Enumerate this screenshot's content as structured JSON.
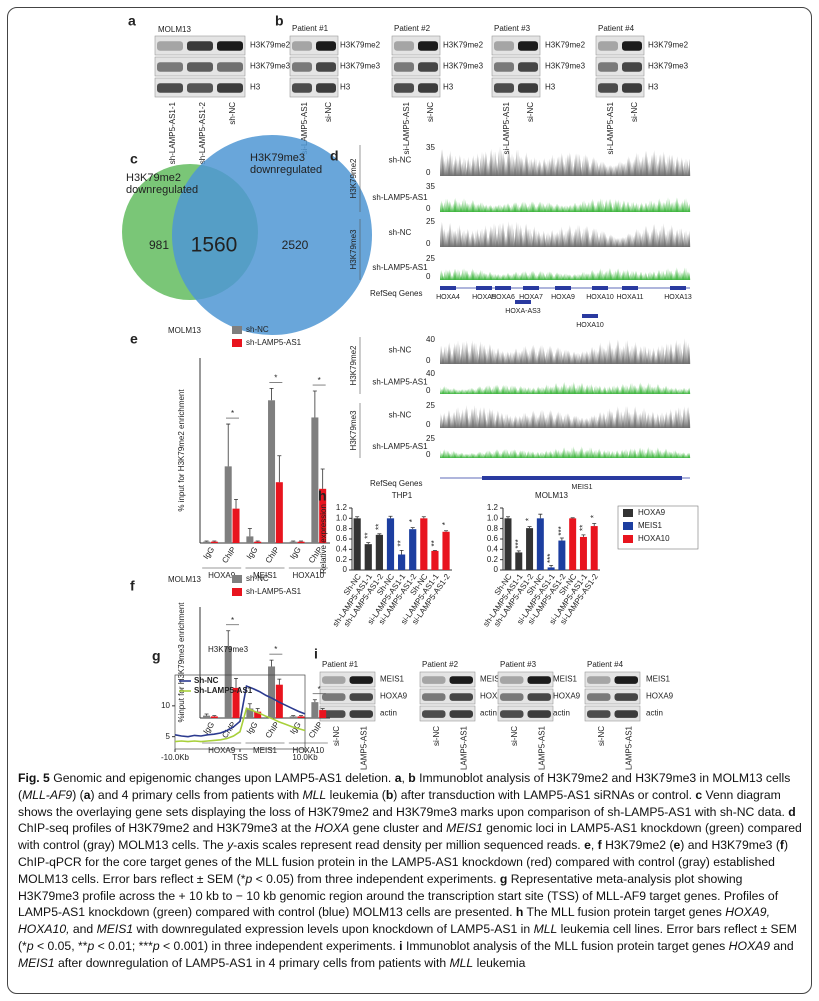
{
  "blots_a": {
    "letter": "a",
    "title": "MOLM13",
    "rows": [
      "H3K79me2",
      "H3K79me3",
      "H3"
    ],
    "lanes": [
      "sh-LAMP5-AS1-1",
      "sh-LAMP5-AS1-2",
      "sh-NC"
    ]
  },
  "blots_b": {
    "letter": "b",
    "blots": [
      {
        "title": "Patient #1",
        "rows": [
          "H3K79me2",
          "H3K79me3",
          "H3"
        ],
        "lanes": [
          "si-LAMP5-AS1",
          "si-NC"
        ]
      },
      {
        "title": "Patient #2",
        "rows": [
          "H3K79me2",
          "H3K79me3",
          "H3"
        ],
        "lanes": [
          "si-LAMP5-AS1",
          "si-NC"
        ]
      },
      {
        "title": "Patient #3",
        "rows": [
          "H3K79me2",
          "H3K79me3",
          "H3"
        ],
        "lanes": [
          "si-LAMP5-AS1",
          "si-NC"
        ]
      },
      {
        "title": "Patient #4",
        "rows": [
          "H3K79me2",
          "H3K79me3",
          "H3"
        ],
        "lanes": [
          "si-LAMP5-AS1",
          "si-NC"
        ]
      }
    ]
  },
  "venn_c": {
    "letter": "c",
    "sets": [
      {
        "label": [
          "H3K79me2",
          "downregulated"
        ],
        "only": 981,
        "color": "#6cc068"
      },
      {
        "label": [
          "H3K79me3",
          "downregulated"
        ],
        "only": 2520,
        "color": "#4f97d4"
      }
    ],
    "overlap": 1560
  },
  "tracks_d": {
    "letter": "d",
    "blocks": [
      {
        "groups": [
          {
            "label": "H3K79me2",
            "tracks": [
              {
                "label": "sh-NC",
                "ymax": 35,
                "ymin": 0,
                "color": "#6e6e6e"
              },
              {
                "label": "sh-LAMP5-AS1",
                "ymax": 35,
                "ymin": 0,
                "color": "#3db53d"
              }
            ]
          },
          {
            "label": "H3K79me3",
            "tracks": [
              {
                "label": "sh-NC",
                "ymax": 25,
                "ymin": 0,
                "color": "#6e6e6e"
              },
              {
                "label": "sh-LAMP5-AS1",
                "ymax": 25,
                "ymin": 0,
                "color": "#3db53d"
              }
            ]
          }
        ],
        "genes_label": "RefSeq Genes",
        "genes": [
          "HOXA4",
          "HOXA5",
          "HOXA6",
          "HOXA7",
          "HOXA9",
          "HOXA10",
          "HOXA11",
          "HOXA13",
          "HOXA-AS3",
          "HOXA10"
        ]
      },
      {
        "groups": [
          {
            "label": "H3K79me2",
            "tracks": [
              {
                "label": "sh-NC",
                "ymax": 40,
                "ymin": 0,
                "color": "#6e6e6e"
              },
              {
                "label": "sh-LAMP5-AS1",
                "ymax": 40,
                "ymin": 0,
                "color": "#3db53d"
              }
            ]
          },
          {
            "label": "H3K79me3",
            "tracks": [
              {
                "label": "sh-NC",
                "ymax": 25,
                "ymin": 0,
                "color": "#6e6e6e"
              },
              {
                "label": "sh-LAMP5-AS1",
                "ymax": 25,
                "ymin": 0,
                "color": "#3db53d"
              }
            ]
          }
        ],
        "genes_label": "RefSeq Genes",
        "genes": [
          "MEIS1"
        ]
      }
    ]
  },
  "chart_data": [
    {
      "type": "bar",
      "letter": "e",
      "title": "MOLM13",
      "y_label": "% input for H3K79me2 enrichment",
      "categories": [
        "IgG",
        "ChIP",
        "IgG",
        "ChIP",
        "IgG",
        "ChIP"
      ],
      "groups": [
        "HOXA9",
        "MEIS1",
        "HOXA10"
      ],
      "series": [
        {
          "name": "sh-NC",
          "color": "#7f7f7f",
          "values": [
            0.1,
            5.8,
            0.5,
            10.8,
            0.1,
            9.5
          ],
          "errors": [
            0.05,
            3.2,
            0.6,
            0.9,
            0.05,
            2.0
          ]
        },
        {
          "name": "sh-LAMP5-AS1",
          "color": "#e8141e",
          "values": [
            0.1,
            2.6,
            0.1,
            4.6,
            0.1,
            4.1
          ],
          "errors": [
            0.05,
            0.7,
            0.05,
            2.0,
            0.05,
            1.5
          ]
        }
      ],
      "significance": [
        "*",
        "*",
        "*"
      ],
      "ylim": [
        0,
        14
      ],
      "legend": "top-right"
    },
    {
      "type": "bar",
      "letter": "f",
      "title": "MOLM13",
      "y_label": "%input for H3K79me3 enrichment",
      "categories": [
        "IgG",
        "ChIP",
        "IgG",
        "ChIP",
        "IgG",
        "ChIP"
      ],
      "groups": [
        "HOXA9",
        "MEIS1",
        "HOXA10"
      ],
      "series": [
        {
          "name": "sh-NC",
          "color": "#7f7f7f",
          "values": [
            0.03,
            0.9,
            0.12,
            0.65,
            0.02,
            0.2
          ],
          "errors": [
            0.02,
            0.2,
            0.06,
            0.08,
            0.01,
            0.03
          ]
        },
        {
          "name": "sh-LAMP5-AS1",
          "color": "#e8141e",
          "values": [
            0.02,
            0.38,
            0.08,
            0.42,
            0.02,
            0.1
          ],
          "errors": [
            0.01,
            0.12,
            0.04,
            0.07,
            0.01,
            0.02
          ]
        }
      ],
      "significance": [
        "*",
        "*",
        "*"
      ],
      "ylim": [
        0,
        1.4
      ],
      "legend": "top-right"
    },
    {
      "type": "bar",
      "letter": "h",
      "title": "THP1",
      "y_label": "Relative expression",
      "categories": [
        "Sh-NC",
        "sh-LAMP5-AS1-1",
        "sh-LAMP5-AS1-2",
        "Sh-NC",
        "si-LAMP5-AS1-1",
        "si-LAMP5-AS1-2",
        "Sh-NC",
        "si-LAMP5-AS1-1",
        "si-LAMP5-AS1-2"
      ],
      "series": [
        {
          "color": "#333333",
          "values": [
            1,
            0.5,
            0.68,
            null,
            null,
            null,
            null,
            null,
            null
          ],
          "errors": [
            0.03,
            0.03,
            0.02,
            null,
            null,
            null,
            null,
            null,
            null
          ],
          "significance": [
            null,
            "**",
            "**",
            null,
            null,
            null,
            null,
            null,
            null
          ]
        },
        {
          "color": "#1c3ea0",
          "values": [
            null,
            null,
            null,
            1,
            0.3,
            0.79,
            null,
            null,
            null
          ],
          "errors": [
            null,
            null,
            null,
            0.04,
            0.08,
            0.03,
            null,
            null,
            null
          ],
          "significance": [
            null,
            null,
            null,
            null,
            "**",
            "*",
            null,
            null,
            null
          ]
        },
        {
          "color": "#e8141e",
          "values": [
            null,
            null,
            null,
            null,
            null,
            null,
            1,
            0.37,
            0.74
          ],
          "errors": [
            null,
            null,
            null,
            null,
            null,
            null,
            0.03,
            0.01,
            0.02
          ],
          "significance": [
            null,
            null,
            null,
            null,
            null,
            null,
            null,
            "**",
            "*"
          ]
        }
      ],
      "ylim": [
        0,
        1.2
      ],
      "yticks": [
        0,
        0.2,
        0.4,
        0.6,
        0.8,
        {
          "value": 1,
          "label": "1.0"
        },
        1.2
      ]
    },
    {
      "type": "bar",
      "title": "MOLM13",
      "categories": [
        "Sh-NC",
        "sh-LAMP5-AS1-1",
        "sh-LAMP5-AS1-2",
        "Sh-NC",
        "si-LAMP5-AS1-1",
        "si-LAMP5-AS1-2",
        "Sh-NC",
        "si-LAMP5-AS1-1",
        "si-LAMP5-AS1-2"
      ],
      "series": [
        {
          "name": "HOXA9",
          "color": "#333333",
          "values": [
            1,
            0.34,
            0.81,
            null,
            null,
            null,
            null,
            null,
            null
          ],
          "errors": [
            0.03,
            0.03,
            0.03,
            null,
            null,
            null,
            null,
            null,
            null
          ],
          "significance": [
            null,
            "***",
            "*",
            null,
            null,
            null,
            null,
            null,
            null
          ]
        },
        {
          "name": "MEIS1",
          "color": "#1c3ea0",
          "values": [
            null,
            null,
            null,
            1,
            0.05,
            0.57,
            null,
            null,
            null
          ],
          "errors": [
            null,
            null,
            null,
            0.08,
            0.04,
            0.05,
            null,
            null,
            null
          ],
          "significance": [
            null,
            null,
            null,
            null,
            "***",
            "***",
            null,
            null,
            null
          ]
        },
        {
          "name": "HOXA10",
          "color": "#e8141e",
          "values": [
            null,
            null,
            null,
            null,
            null,
            null,
            1,
            0.64,
            0.85
          ],
          "errors": [
            null,
            null,
            null,
            null,
            null,
            null,
            0.01,
            0.04,
            0.05
          ],
          "significance": [
            null,
            null,
            null,
            null,
            null,
            null,
            null,
            "**",
            "*"
          ]
        }
      ],
      "ylim": [
        0,
        1.2
      ],
      "yticks": [
        0,
        0.2,
        0.4,
        0.6,
        0.8,
        {
          "value": 1,
          "label": "1.0"
        },
        1.2
      ],
      "legend": "right"
    },
    {
      "type": "line",
      "letter": "g",
      "title": "H3K79me3",
      "x": [
        -10,
        -9,
        -8,
        -7,
        -6,
        -5,
        -4,
        -3,
        -2,
        -1,
        0,
        1,
        2,
        3,
        4,
        5,
        6,
        7,
        8,
        9,
        10
      ],
      "series": [
        {
          "name": "Sh-NC",
          "color": "#2b3a8f",
          "values": [
            5.3,
            5.1,
            5.0,
            5.2,
            5.1,
            5.3,
            5.4,
            5.6,
            6.0,
            6.6,
            7.5,
            13.2,
            12.8,
            12.3,
            11.7,
            11.2,
            10.6,
            10.1,
            9.6,
            9.1,
            8.7
          ]
        },
        {
          "name": "Sh-LAMP5-AS1",
          "color": "#a8d03a",
          "values": [
            4.2,
            4.3,
            4.2,
            4.3,
            4.2,
            4.3,
            4.4,
            4.5,
            4.7,
            5.1,
            5.8,
            9.6,
            9.2,
            8.8,
            8.3,
            7.9,
            7.4,
            7.0,
            6.6,
            6.3,
            6.0
          ]
        }
      ],
      "xlim": [
        -10,
        10
      ],
      "ylim": [
        3,
        15
      ],
      "xticks": [
        {
          "value": -10,
          "label": "-10.0Kb"
        },
        {
          "value": 0,
          "label": "TSS"
        },
        {
          "value": 10,
          "label": "10.0Kb"
        }
      ],
      "yticks": [
        5,
        10
      ],
      "legend": "top-left"
    }
  ],
  "blots_i": {
    "letter": "i",
    "blots": [
      {
        "title": "Patient #1",
        "rows": [
          "MEIS1",
          "HOXA9",
          "actin"
        ],
        "lanes": [
          "si-NC",
          "si-LAMP5-AS1"
        ]
      },
      {
        "title": "Patient #2",
        "rows": [
          "MEIS1",
          "HOXA9",
          "actin"
        ],
        "lanes": [
          "si-NC",
          "si-LAMP5-AS1"
        ]
      },
      {
        "title": "Patient #3",
        "rows": [
          "MEIS1",
          "HOXA9",
          "actin"
        ],
        "lanes": [
          "si-NC",
          "si-LAMP5-AS1"
        ]
      },
      {
        "title": "Patient #4",
        "rows": [
          "MEIS1",
          "HOXA9",
          "actin"
        ],
        "lanes": [
          "si-NC",
          "si-LAMP5-AS1"
        ]
      }
    ]
  },
  "caption": [
    {
      "text": "Fig. 5",
      "bold": true
    },
    {
      "text": " Genomic and epigenomic changes upon LAMP5-AS1 deletion. "
    },
    {
      "text": "a",
      "bold": true
    },
    {
      "text": ", "
    },
    {
      "text": "b",
      "bold": true
    },
    {
      "text": " Immunoblot analysis of H3K79me2 and H3K79me3 in MOLM13 cells ("
    },
    {
      "text": "MLL-AF9",
      "italic": true
    },
    {
      "text": ") ("
    },
    {
      "text": "a",
      "bold": true
    },
    {
      "text": ") and 4 primary cells from patients with "
    },
    {
      "text": "MLL",
      "italic": true
    },
    {
      "text": " leukemia ("
    },
    {
      "text": "b",
      "bold": true
    },
    {
      "text": ") after transduction with LAMP5-AS1 siRNAs or control. "
    },
    {
      "text": "c",
      "bold": true
    },
    {
      "text": " Venn diagram shows the overlaying gene sets displaying the loss of H3K79me2 and H3K79me3 marks upon comparison of sh-LAMP5-AS1 with sh-NC data. "
    },
    {
      "text": "d",
      "bold": true
    },
    {
      "text": " ChIP-seq profiles of H3K79me2 and H3K79me3 at the "
    },
    {
      "text": "HOXA",
      "italic": true
    },
    {
      "text": " gene cluster and "
    },
    {
      "text": "MEIS1",
      "italic": true
    },
    {
      "text": " genomic loci in LAMP5-AS1 knockdown (green) compared with control (gray) MOLM13 cells. The "
    },
    {
      "text": "y",
      "italic": true
    },
    {
      "text": "-axis scales represent read density per million sequenced reads. "
    },
    {
      "text": "e",
      "bold": true
    },
    {
      "text": ", "
    },
    {
      "text": "f",
      "bold": true
    },
    {
      "text": " H3K79me2 ("
    },
    {
      "text": "e",
      "bold": true
    },
    {
      "text": ") and H3K79me3 ("
    },
    {
      "text": "f",
      "bold": true
    },
    {
      "text": ") ChIP-qPCR for the core target genes of the MLL fusion protein in the LAMP5-AS1 knockdown (red) compared with control (gray) established MOLM13 cells. Error bars reflect ± SEM (*"
    },
    {
      "text": "p",
      "italic": true
    },
    {
      "text": " < 0.05) from three independent experiments. "
    },
    {
      "text": "g",
      "bold": true
    },
    {
      "text": " Representative meta-analysis plot showing H3K79me3 profile across the + 10 kb to − 10 kb genomic region around the transcription start site (TSS) of MLL-AF9 target genes. Profiles of LAMP5-AS1 knockdown (green) compared with control (blue) MOLM13 cells are presented. "
    },
    {
      "text": "h",
      "bold": true
    },
    {
      "text": " The MLL fusion protein target genes "
    },
    {
      "text": "HOXA9, HOXA10,",
      "italic": true
    },
    {
      "text": " and "
    },
    {
      "text": "MEIS1",
      "italic": true
    },
    {
      "text": " with downregulated expression levels upon knockdown of LAMP5-AS1 in "
    },
    {
      "text": "MLL",
      "italic": true
    },
    {
      "text": " leukemia cell lines. Error bars reflect ± SEM (*"
    },
    {
      "text": "p",
      "italic": true
    },
    {
      "text": " < 0.05, **"
    },
    {
      "text": "p",
      "italic": true
    },
    {
      "text": " < 0.01; ***"
    },
    {
      "text": "p",
      "italic": true
    },
    {
      "text": " < 0.001) in three independent experiments. "
    },
    {
      "text": "i",
      "bold": true
    },
    {
      "text": " Immunoblot analysis of the MLL fusion protein target genes "
    },
    {
      "text": "HOXA9",
      "italic": true
    },
    {
      "text": " and "
    },
    {
      "text": "MEIS1",
      "italic": true
    },
    {
      "text": " after downregulation of LAMP5-AS1 in 4 primary cells from patients with "
    },
    {
      "text": "MLL",
      "italic": true
    },
    {
      "text": " leukemia"
    }
  ]
}
